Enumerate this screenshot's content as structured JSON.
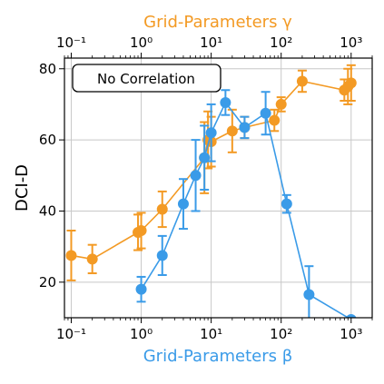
{
  "chart_data": {
    "type": "line",
    "ylabel": "DCI-D",
    "ylim": [
      10,
      83
    ],
    "y_ticks": [
      20,
      40,
      60,
      80
    ],
    "x_scale": "log",
    "grid": true,
    "annotation": "No Correlation",
    "bottom_axis": {
      "label": "Grid-Parameters β",
      "color": "#3a9be8",
      "xlim": [
        0.08,
        2000
      ],
      "ticks": [
        {
          "value": 0.1,
          "label": "10⁻¹"
        },
        {
          "value": 1,
          "label": "10⁰"
        },
        {
          "value": 10,
          "label": "10¹"
        },
        {
          "value": 100,
          "label": "10²"
        },
        {
          "value": 1000,
          "label": "10³"
        }
      ]
    },
    "top_axis": {
      "label": "Grid-Parameters γ",
      "color": "#f39a24",
      "xlim": [
        0.08,
        2000
      ],
      "ticks": [
        {
          "value": 0.1,
          "label": "10⁻¹"
        },
        {
          "value": 1,
          "label": "10⁰"
        },
        {
          "value": 10,
          "label": "10¹"
        },
        {
          "value": 100,
          "label": "10²"
        },
        {
          "value": 1000,
          "label": "10³"
        }
      ]
    },
    "series": [
      {
        "color": "#f39a24",
        "axis": "top",
        "points": [
          {
            "x": 0.1,
            "y": 27.5,
            "err": 7
          },
          {
            "x": 0.2,
            "y": 26.5,
            "err": 4
          },
          {
            "x": 0.9,
            "y": 34,
            "err": 5
          },
          {
            "x": 1.0,
            "y": 34.5,
            "err": 5
          },
          {
            "x": 2.0,
            "y": 40.5,
            "err": 5
          },
          {
            "x": 8.0,
            "y": 55,
            "err": 10
          },
          {
            "x": 9.0,
            "y": 60,
            "err": 8
          },
          {
            "x": 10.0,
            "y": 59.5,
            "err": 7
          },
          {
            "x": 20.0,
            "y": 62.5,
            "err": 6
          },
          {
            "x": 30.0,
            "y": 63.5,
            "err": 3
          },
          {
            "x": 80.0,
            "y": 65.5,
            "err": 3
          },
          {
            "x": 100.0,
            "y": 70,
            "err": 2
          },
          {
            "x": 200.0,
            "y": 76.5,
            "err": 3
          },
          {
            "x": 800.0,
            "y": 74,
            "err": 3
          },
          {
            "x": 900.0,
            "y": 75,
            "err": 5
          },
          {
            "x": 1000.0,
            "y": 76,
            "err": 5
          }
        ]
      },
      {
        "color": "#3a9be8",
        "axis": "bottom",
        "points": [
          {
            "x": 1.0,
            "y": 18,
            "err": 3.5
          },
          {
            "x": 2.0,
            "y": 27.5,
            "err": 5.5
          },
          {
            "x": 4.0,
            "y": 42,
            "err": 7
          },
          {
            "x": 6.0,
            "y": 50,
            "err": 10
          },
          {
            "x": 8.0,
            "y": 55,
            "err": 9
          },
          {
            "x": 10.0,
            "y": 62,
            "err": 8
          },
          {
            "x": 16.0,
            "y": 70.5,
            "err": 3.5
          },
          {
            "x": 30.0,
            "y": 63.5,
            "err": 3
          },
          {
            "x": 60.0,
            "y": 67.5,
            "err": 6
          },
          {
            "x": 120.0,
            "y": 42,
            "err": 2.5
          },
          {
            "x": 250.0,
            "y": 16.5,
            "err": 8
          },
          {
            "x": 1000.0,
            "y": 9.5,
            "err": 0
          }
        ]
      }
    ]
  }
}
